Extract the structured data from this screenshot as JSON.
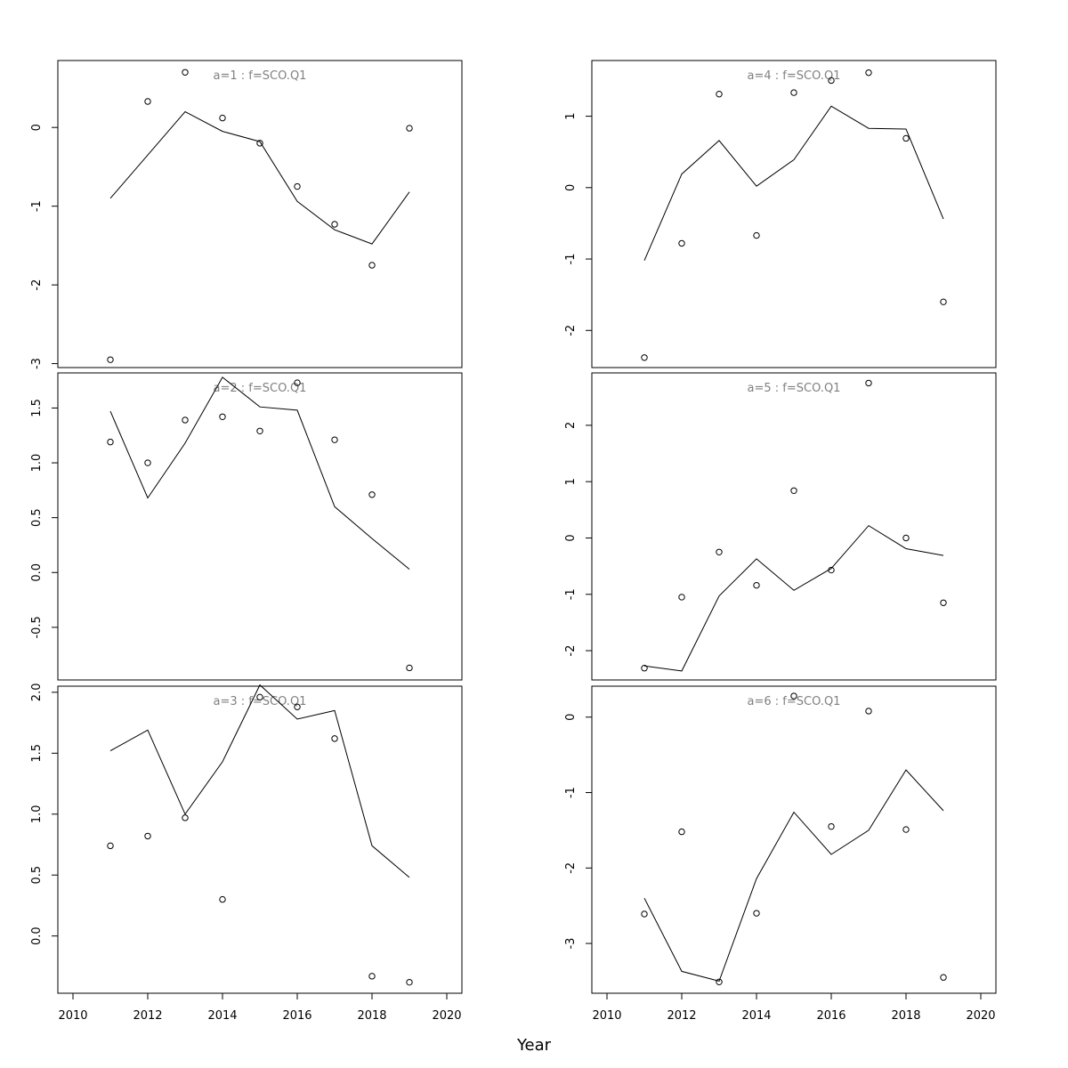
{
  "figure": {
    "xlabel": "Year"
  },
  "chart_data": [
    {
      "type": "line",
      "title": "a=1  :  f=SCO.Q1",
      "x": [
        2011,
        2012,
        2013,
        2014,
        2015,
        2016,
        2017,
        2018,
        2019
      ],
      "xlim": [
        2010,
        2020
      ],
      "ylim": [
        -3.05,
        0.85
      ],
      "yticks": [
        -3,
        -2,
        -1,
        0
      ],
      "show_xaxis": false,
      "series": [
        {
          "style": "line",
          "values": [
            -0.9,
            -0.35,
            0.2,
            -0.05,
            -0.18,
            -0.94,
            -1.3,
            -1.48,
            -0.82
          ]
        },
        {
          "style": "points",
          "values": [
            -2.95,
            0.33,
            0.7,
            0.12,
            -0.2,
            -0.75,
            -1.23,
            -1.75,
            -0.01
          ]
        }
      ]
    },
    {
      "type": "line",
      "title": "a=4  :  f=SCO.Q1",
      "x": [
        2011,
        2012,
        2013,
        2014,
        2015,
        2016,
        2017,
        2018,
        2019
      ],
      "xlim": [
        2010,
        2020
      ],
      "ylim": [
        -2.52,
        1.78
      ],
      "yticks": [
        -2,
        -1,
        0,
        1
      ],
      "show_xaxis": false,
      "series": [
        {
          "style": "line",
          "values": [
            -1.02,
            0.19,
            0.66,
            0.02,
            0.39,
            1.14,
            0.83,
            0.82,
            -0.44
          ]
        },
        {
          "style": "points",
          "values": [
            -2.38,
            -0.78,
            1.31,
            -0.67,
            1.33,
            1.5,
            1.61,
            0.69,
            -1.6
          ]
        }
      ]
    },
    {
      "type": "line",
      "title": "a=2  :  f=SCO.Q1",
      "x": [
        2011,
        2012,
        2013,
        2014,
        2015,
        2016,
        2017,
        2018,
        2019
      ],
      "xlim": [
        2010,
        2020
      ],
      "ylim": [
        -0.98,
        1.82
      ],
      "yticks": [
        -0.5,
        0.0,
        0.5,
        1.0,
        1.5
      ],
      "ytick_labels": [
        "-0.5",
        "0.0",
        "0.5",
        "1.0",
        "1.5"
      ],
      "show_xaxis": false,
      "series": [
        {
          "style": "line",
          "values": [
            1.47,
            0.68,
            1.18,
            1.78,
            1.51,
            1.48,
            0.6,
            0.31,
            0.03
          ]
        },
        {
          "style": "points",
          "values": [
            1.19,
            1.0,
            1.39,
            1.42,
            1.29,
            1.73,
            1.21,
            0.71,
            -0.87
          ]
        }
      ]
    },
    {
      "type": "line",
      "title": "a=5  :  f=SCO.Q1",
      "x": [
        2011,
        2012,
        2013,
        2014,
        2015,
        2016,
        2017,
        2018,
        2019
      ],
      "xlim": [
        2010,
        2020
      ],
      "ylim": [
        -2.52,
        2.93
      ],
      "yticks": [
        -2,
        -1,
        0,
        1,
        2
      ],
      "show_xaxis": false,
      "series": [
        {
          "style": "line",
          "values": [
            -2.27,
            -2.36,
            -1.03,
            -0.37,
            -0.93,
            -0.54,
            0.22,
            -0.19,
            -0.31
          ]
        },
        {
          "style": "points",
          "values": [
            -2.31,
            -1.05,
            -0.25,
            -0.84,
            0.84,
            -0.57,
            2.75,
            0.0,
            -1.15
          ]
        }
      ]
    },
    {
      "type": "line",
      "title": "a=3  :  f=SCO.Q1",
      "x": [
        2011,
        2012,
        2013,
        2014,
        2015,
        2016,
        2017,
        2018,
        2019
      ],
      "xlim": [
        2010,
        2020
      ],
      "ylim": [
        -0.47,
        2.05
      ],
      "yticks": [
        0.0,
        0.5,
        1.0,
        1.5,
        2.0
      ],
      "ytick_labels": [
        "0.0",
        "0.5",
        "1.0",
        "1.5",
        "2.0"
      ],
      "show_xaxis": true,
      "xticks": [
        2010,
        2012,
        2014,
        2016,
        2018,
        2020
      ],
      "series": [
        {
          "style": "line",
          "values": [
            1.52,
            1.69,
            1.0,
            1.43,
            2.06,
            1.78,
            1.85,
            0.74,
            0.48
          ]
        },
        {
          "style": "points",
          "values": [
            0.74,
            0.82,
            0.97,
            0.3,
            1.96,
            1.88,
            1.62,
            -0.33,
            -0.38
          ]
        }
      ]
    },
    {
      "type": "line",
      "title": "a=6  :  f=SCO.Q1",
      "x": [
        2011,
        2012,
        2013,
        2014,
        2015,
        2016,
        2017,
        2018,
        2019
      ],
      "xlim": [
        2010,
        2020
      ],
      "ylim": [
        -3.66,
        0.41
      ],
      "yticks": [
        -3,
        -2,
        -1,
        0
      ],
      "show_xaxis": true,
      "xticks": [
        2010,
        2012,
        2014,
        2016,
        2018,
        2020
      ],
      "series": [
        {
          "style": "line",
          "values": [
            -2.4,
            -3.37,
            -3.5,
            -2.14,
            -1.26,
            -1.82,
            -1.5,
            -0.7,
            -1.24
          ]
        },
        {
          "style": "points",
          "values": [
            -2.61,
            -1.52,
            -3.51,
            -2.6,
            0.28,
            -1.45,
            0.08,
            -1.49,
            -3.45
          ]
        }
      ]
    }
  ]
}
